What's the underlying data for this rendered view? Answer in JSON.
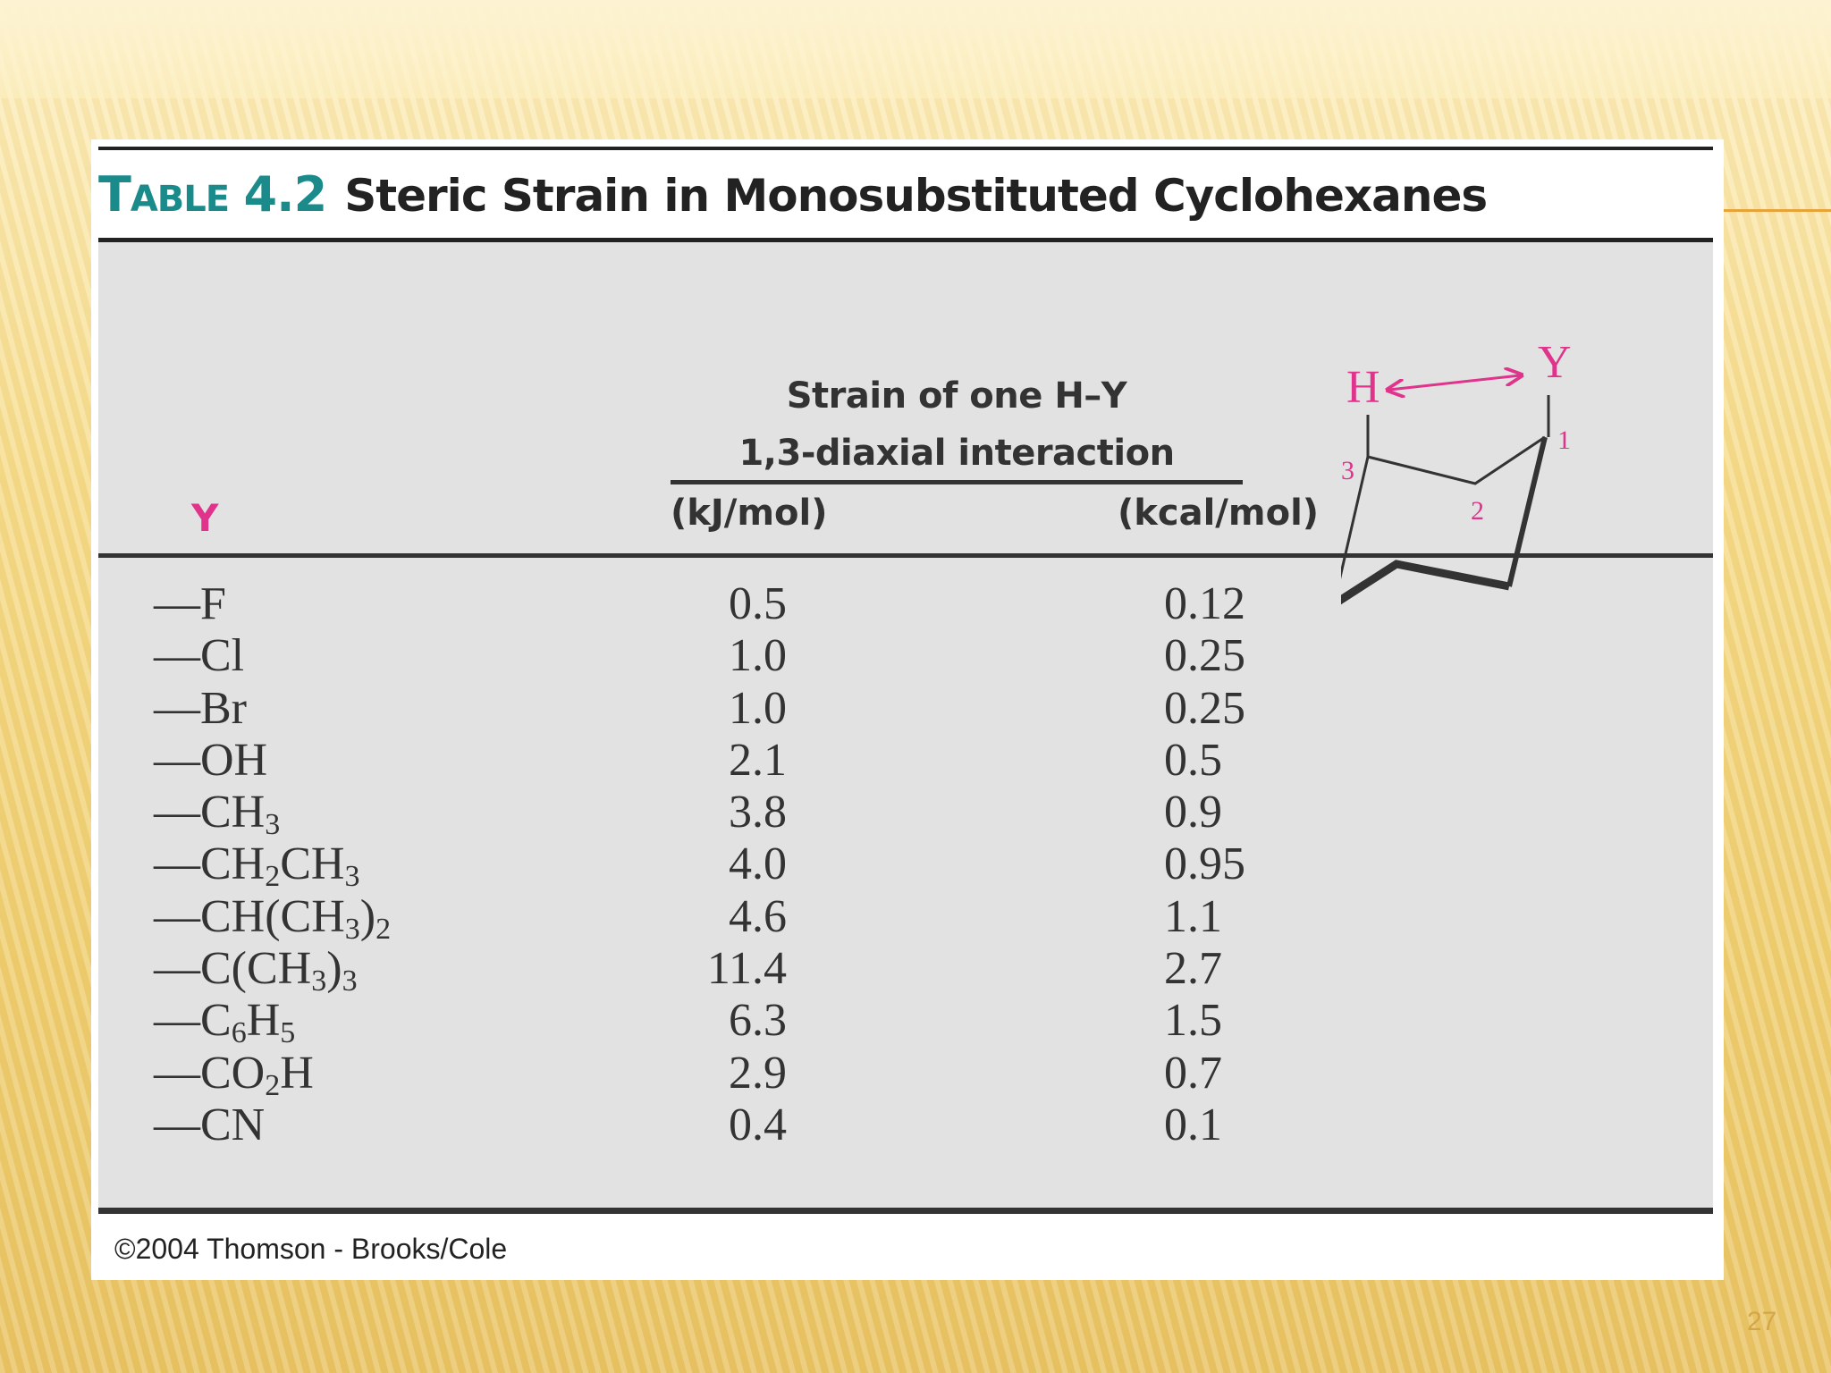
{
  "slide": {
    "page_number": "27",
    "accent_color": "#e8a23a"
  },
  "table": {
    "tag_prefix": "T",
    "tag_rest": "ABLE",
    "tag_number": "4.2",
    "title": "Steric Strain in Monosubstituted Cyclohexanes",
    "strain_header_line1": "Strain of one H–Y",
    "strain_header_line2": "1,3-diaxial interaction",
    "col_y": "Y",
    "col_kj": "(kJ/mol)",
    "col_kcal": "(kcal/mol)",
    "rows": [
      {
        "y": [
          "—F"
        ],
        "kj": "0.5",
        "kcal": "0.12"
      },
      {
        "y": [
          "—Cl"
        ],
        "kj": "1.0",
        "kcal": "0.25"
      },
      {
        "y": [
          "—Br"
        ],
        "kj": "1.0",
        "kcal": "0.25"
      },
      {
        "y": [
          "—OH"
        ],
        "kj": "2.1",
        "kcal": "0.5"
      },
      {
        "y": [
          "—CH",
          "3"
        ],
        "kj": "3.8",
        "kcal": "0.9"
      },
      {
        "y": [
          "—CH",
          "2",
          "CH",
          "3"
        ],
        "kj": "4.0",
        "kcal": "0.95"
      },
      {
        "y": [
          "—CH(CH",
          "3",
          ")",
          "2"
        ],
        "kj": "4.6",
        "kcal": "1.1"
      },
      {
        "y": [
          "—C(CH",
          "3",
          ")",
          "3"
        ],
        "kj": "11.4",
        "kcal": "2.7"
      },
      {
        "y": [
          "—C",
          "6",
          "H",
          "5"
        ],
        "kj": "6.3",
        "kcal": "1.5"
      },
      {
        "y": [
          "—CO",
          "2",
          "H"
        ],
        "kj": "2.9",
        "kcal": "0.7"
      },
      {
        "y": [
          "—CN"
        ],
        "kj": "0.4",
        "kcal": "0.1"
      }
    ],
    "copyright": "©2004 Thomson - Brooks/Cole"
  },
  "diagram": {
    "label_h": "H",
    "label_y": "Y",
    "carbon_1": "1",
    "carbon_2": "2",
    "carbon_3": "3",
    "highlight_color": "#e0338c"
  }
}
